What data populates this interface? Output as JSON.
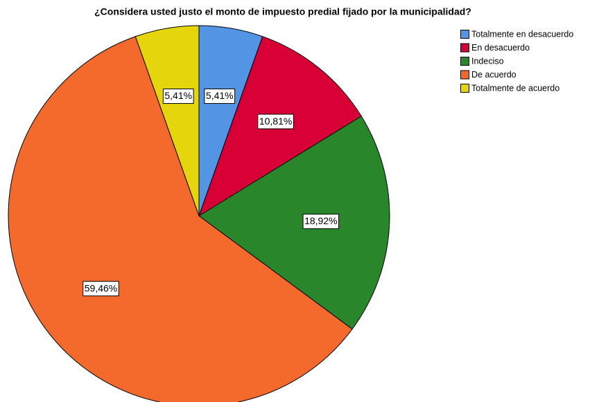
{
  "chart_data": {
    "type": "pie",
    "title": "¿Considera usted justo el monto de impuesto predial fijado por la municipalidad?",
    "categories": [
      "Totalmente en desacuerdo",
      "En desacuerdo",
      "Indeciso",
      "De acuerdo",
      "Totalmente de acuerdo"
    ],
    "values": [
      5.41,
      10.81,
      18.92,
      59.46,
      5.41
    ],
    "value_labels": [
      "5,41%",
      "10,81%",
      "18,92%",
      "59,46%",
      "5,41%"
    ],
    "colors": [
      "#5394e4",
      "#d60036",
      "#2a862b",
      "#f36a2c",
      "#e4d50c"
    ],
    "legend": "top-right"
  }
}
